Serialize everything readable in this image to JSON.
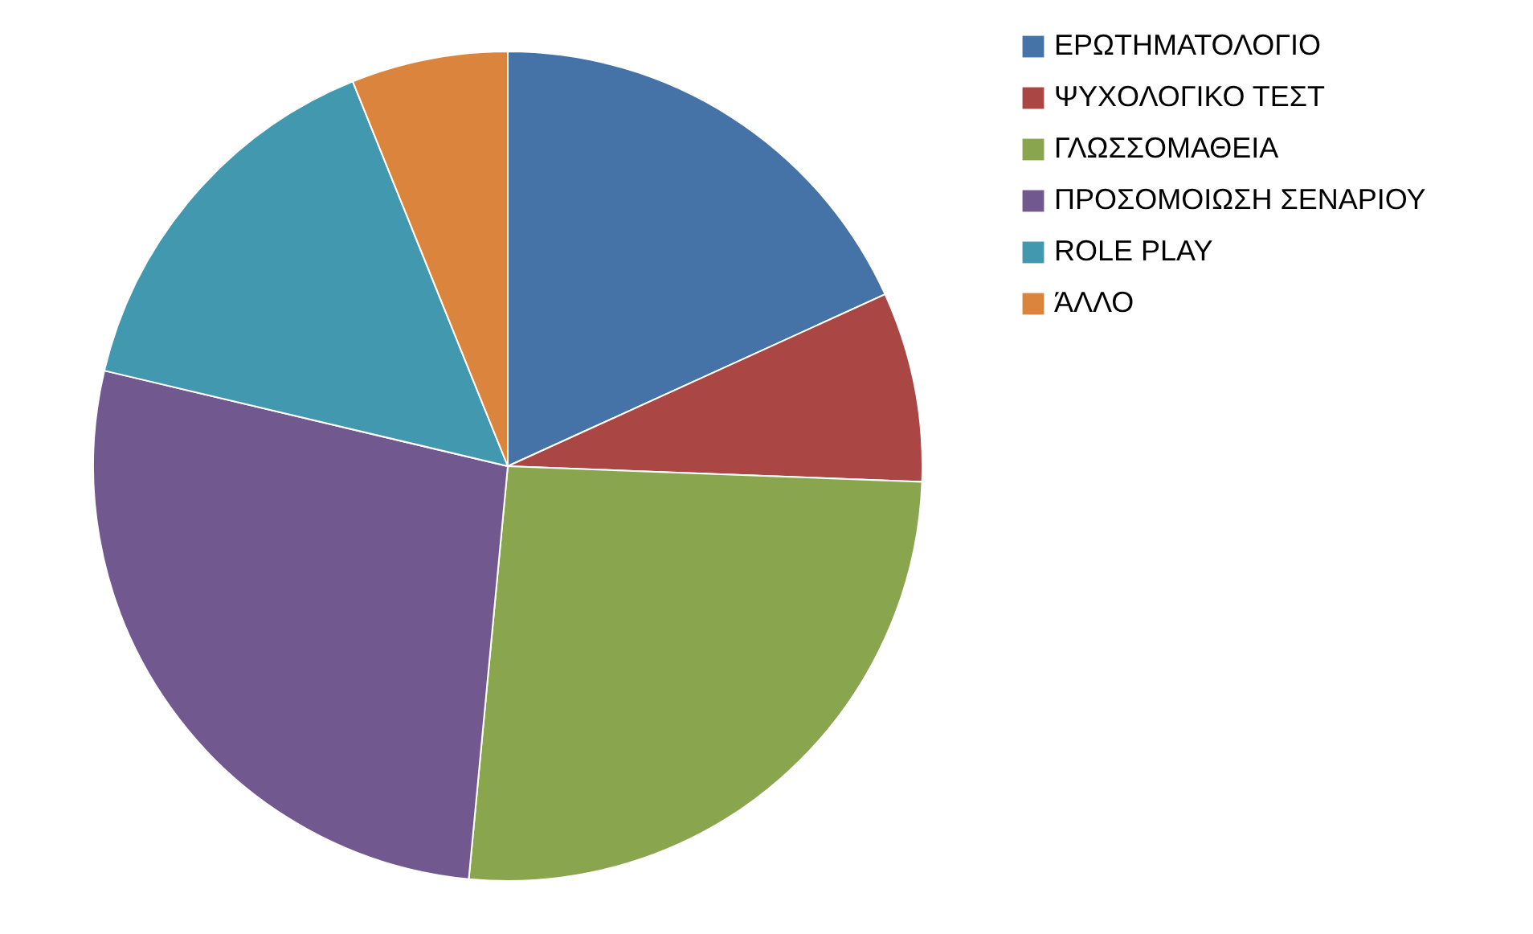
{
  "chart_data": {
    "type": "pie",
    "categories": [
      "ΕΡΩΤΗΜΑΤΟΛΟΓΙΟ",
      "ΨΥΧΟΛΟΓΙΚΟ ΤΕΣΤ",
      "ΓΛΩΣΣΟΜΑΘΕΙΑ",
      "ΠΡΟΣΟΜΟΙΩΣΗ ΣΕΝΑΡΙΟΥ",
      "ROLE PLAY",
      "ΆΛΛΟ"
    ],
    "values": [
      18.2,
      7.4,
      25.9,
      27.2,
      15.2,
      6.1
    ],
    "colors": [
      "#4572a7",
      "#aa4643",
      "#89a54e",
      "#71588f",
      "#4198af",
      "#db843d"
    ],
    "legend": "right"
  }
}
